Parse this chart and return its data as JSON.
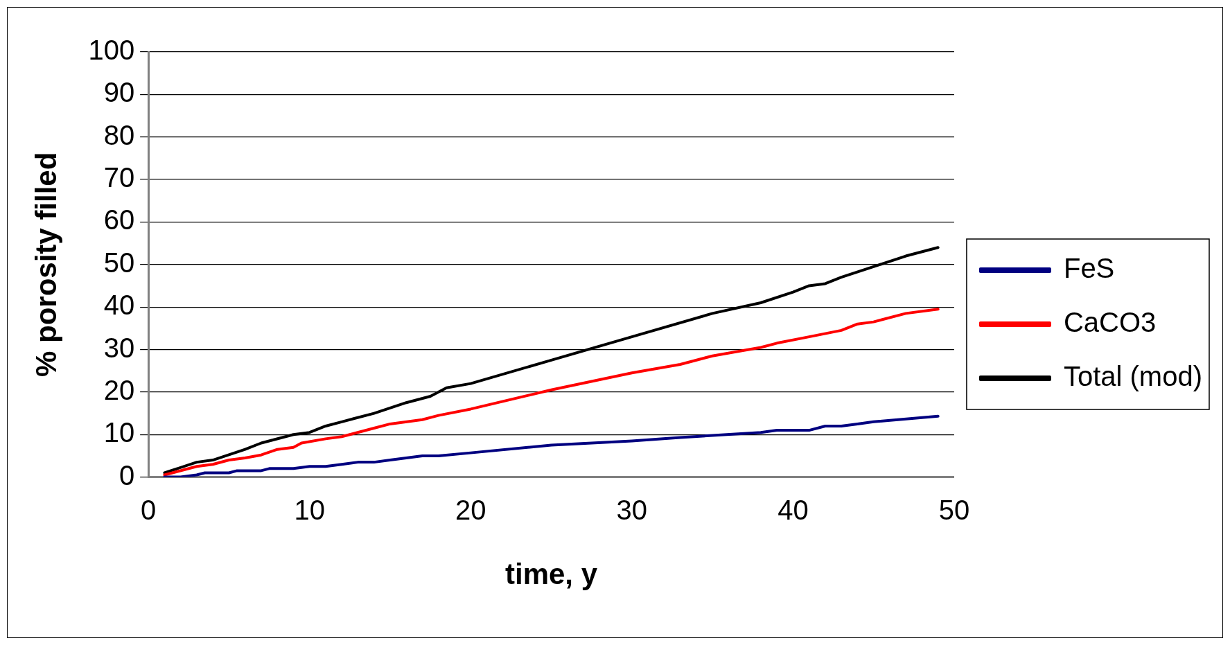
{
  "chart_data": {
    "type": "line",
    "xlabel": "time, y",
    "ylabel": "% porosity filled",
    "xlim": [
      0,
      50
    ],
    "xticks": [
      0,
      10,
      20,
      30,
      40,
      50
    ],
    "ylim": [
      0,
      100
    ],
    "yticks": [
      0,
      10,
      20,
      30,
      40,
      50,
      60,
      70,
      80,
      90,
      100
    ],
    "grid": "y",
    "legend": "right",
    "marker": "none",
    "line_style": "solid",
    "series": [
      {
        "name": "FeS",
        "color": "#000080",
        "x": [
          1,
          2,
          3,
          3.5,
          5,
          5.5,
          7,
          7.5,
          9,
          10,
          11,
          12,
          13,
          14,
          15,
          17,
          18,
          20,
          25,
          30,
          33,
          38,
          39,
          41,
          42,
          43,
          44,
          45,
          49
        ],
        "values": [
          0,
          0,
          0.5,
          1,
          1,
          1.5,
          1.5,
          2,
          2,
          2.5,
          2.5,
          3,
          3.5,
          3.5,
          4,
          5,
          5,
          5.7,
          7.5,
          8.5,
          9.3,
          10.5,
          11,
          11,
          12,
          12,
          12.5,
          13,
          14.3
        ]
      },
      {
        "name": "CaCO3",
        "color": "#ff0000",
        "x": [
          1,
          3,
          4,
          5,
          6,
          7,
          8,
          9,
          9.5,
          11,
          12,
          14,
          15,
          17,
          18,
          20,
          25,
          30,
          33,
          35,
          38,
          39,
          41,
          43,
          44,
          45,
          47,
          49
        ],
        "values": [
          0.5,
          2.5,
          3,
          4,
          4.5,
          5.2,
          6.5,
          7,
          8,
          9,
          9.5,
          11.5,
          12.5,
          13.5,
          14.5,
          16,
          20.5,
          24.5,
          26.5,
          28.5,
          30.5,
          31.5,
          33,
          34.5,
          36,
          36.5,
          38.5,
          39.5
        ]
      },
      {
        "name": "Total (mod)",
        "color": "#000000",
        "x": [
          1,
          3,
          4,
          6,
          7,
          9,
          10,
          11,
          12,
          14,
          16,
          17.5,
          18.5,
          20,
          25,
          30,
          35,
          38,
          40,
          41,
          42,
          43,
          45,
          47,
          49
        ],
        "values": [
          1,
          3.5,
          4,
          6.5,
          8,
          10,
          10.5,
          12,
          13,
          15,
          17.5,
          19,
          21,
          22,
          27.5,
          33,
          38.5,
          41,
          43.5,
          45,
          45.5,
          47,
          49.5,
          52,
          54
        ]
      }
    ]
  }
}
